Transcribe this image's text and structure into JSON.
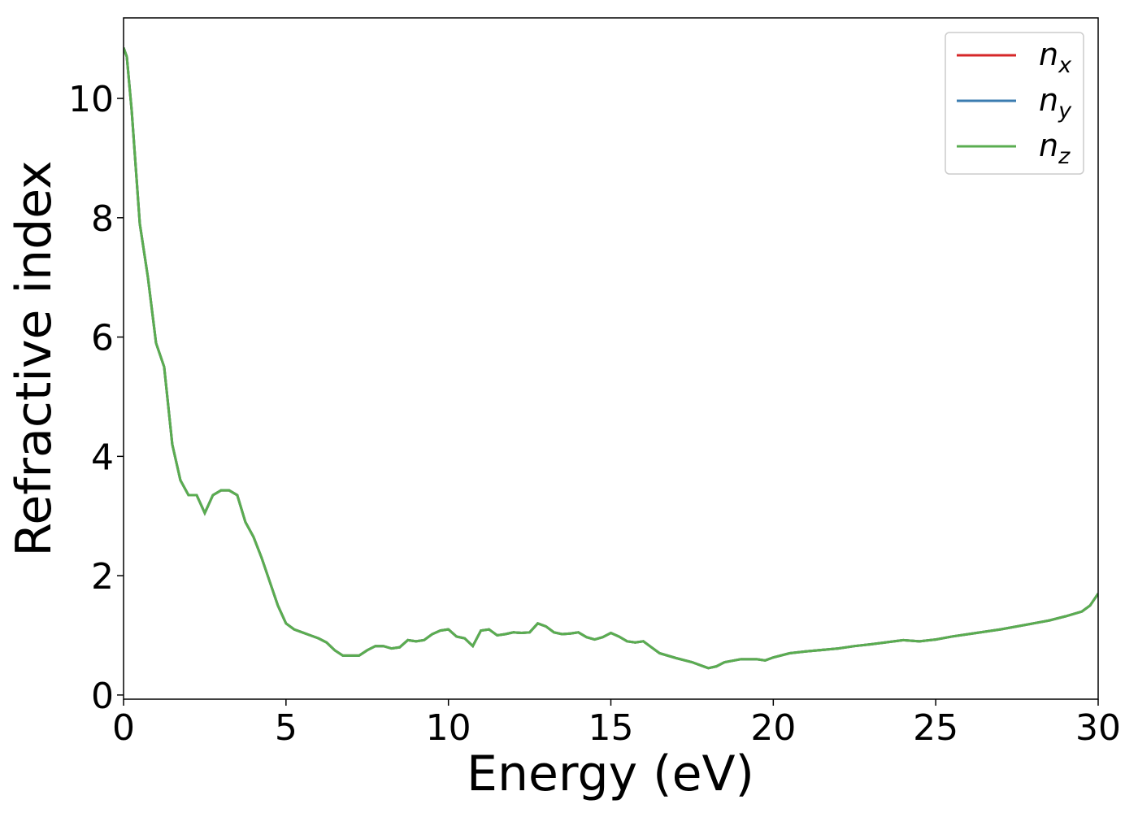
{
  "chart_data": {
    "type": "line",
    "xlabel": "Energy (eV)",
    "ylabel": "Refractive index",
    "x": [
      0,
      0.1,
      0.25,
      0.5,
      0.75,
      1.0,
      1.25,
      1.5,
      1.75,
      2.0,
      2.25,
      2.5,
      2.75,
      3.0,
      3.25,
      3.5,
      3.75,
      4.0,
      4.25,
      4.5,
      4.75,
      5.0,
      5.25,
      5.5,
      5.75,
      6.0,
      6.25,
      6.5,
      6.75,
      7.0,
      7.25,
      7.5,
      7.75,
      8.0,
      8.25,
      8.5,
      8.75,
      9.0,
      9.25,
      9.5,
      9.75,
      10.0,
      10.25,
      10.5,
      10.75,
      11.0,
      11.25,
      11.5,
      11.75,
      12.0,
      12.25,
      12.5,
      12.75,
      13.0,
      13.25,
      13.5,
      13.75,
      14.0,
      14.25,
      14.5,
      14.75,
      15.0,
      15.25,
      15.5,
      15.75,
      16.0,
      16.25,
      16.5,
      17.0,
      17.5,
      17.75,
      18.0,
      18.25,
      18.5,
      19.0,
      19.5,
      19.75,
      20.0,
      20.5,
      21.0,
      22.0,
      22.5,
      23.0,
      24.0,
      24.5,
      25.0,
      25.5,
      26.0,
      27.0,
      28.0,
      28.5,
      29.0,
      29.5,
      29.75,
      30.0
    ],
    "series": [
      {
        "name": "nx",
        "color": "#d62728",
        "values": [
          10.85,
          10.7,
          9.8,
          7.9,
          7.0,
          5.9,
          5.5,
          4.2,
          3.6,
          3.35,
          3.35,
          3.05,
          3.35,
          3.43,
          3.43,
          3.35,
          2.9,
          2.65,
          2.3,
          1.9,
          1.5,
          1.2,
          1.1,
          1.05,
          1.0,
          0.95,
          0.88,
          0.75,
          0.66,
          0.66,
          0.66,
          0.75,
          0.82,
          0.82,
          0.78,
          0.8,
          0.92,
          0.9,
          0.92,
          1.02,
          1.08,
          1.1,
          0.98,
          0.95,
          0.82,
          1.08,
          1.1,
          1.0,
          1.02,
          1.05,
          1.04,
          1.05,
          1.2,
          1.15,
          1.05,
          1.02,
          1.03,
          1.05,
          0.97,
          0.93,
          0.97,
          1.04,
          0.98,
          0.9,
          0.88,
          0.9,
          0.8,
          0.7,
          0.62,
          0.55,
          0.5,
          0.45,
          0.48,
          0.55,
          0.6,
          0.6,
          0.58,
          0.63,
          0.7,
          0.73,
          0.78,
          0.82,
          0.85,
          0.92,
          0.9,
          0.93,
          0.98,
          1.02,
          1.1,
          1.2,
          1.25,
          1.32,
          1.4,
          1.5,
          1.7
        ]
      },
      {
        "name": "ny",
        "color": "#3b7cb0",
        "values": [
          10.85,
          10.7,
          9.8,
          7.9,
          7.0,
          5.9,
          5.5,
          4.2,
          3.6,
          3.35,
          3.35,
          3.05,
          3.35,
          3.43,
          3.43,
          3.35,
          2.9,
          2.65,
          2.3,
          1.9,
          1.5,
          1.2,
          1.1,
          1.05,
          1.0,
          0.95,
          0.88,
          0.75,
          0.66,
          0.66,
          0.66,
          0.75,
          0.82,
          0.82,
          0.78,
          0.8,
          0.92,
          0.9,
          0.92,
          1.02,
          1.08,
          1.1,
          0.98,
          0.95,
          0.82,
          1.08,
          1.1,
          1.0,
          1.02,
          1.05,
          1.04,
          1.05,
          1.2,
          1.15,
          1.05,
          1.02,
          1.03,
          1.05,
          0.97,
          0.93,
          0.97,
          1.04,
          0.98,
          0.9,
          0.88,
          0.9,
          0.8,
          0.7,
          0.62,
          0.55,
          0.5,
          0.45,
          0.48,
          0.55,
          0.6,
          0.6,
          0.58,
          0.63,
          0.7,
          0.73,
          0.78,
          0.82,
          0.85,
          0.92,
          0.9,
          0.93,
          0.98,
          1.02,
          1.1,
          1.2,
          1.25,
          1.32,
          1.4,
          1.5,
          1.7
        ]
      },
      {
        "name": "nz",
        "color": "#5aad50",
        "values": [
          10.85,
          10.7,
          9.8,
          7.9,
          7.0,
          5.9,
          5.5,
          4.2,
          3.6,
          3.35,
          3.35,
          3.05,
          3.35,
          3.43,
          3.43,
          3.35,
          2.9,
          2.65,
          2.3,
          1.9,
          1.5,
          1.2,
          1.1,
          1.05,
          1.0,
          0.95,
          0.88,
          0.75,
          0.66,
          0.66,
          0.66,
          0.75,
          0.82,
          0.82,
          0.78,
          0.8,
          0.92,
          0.9,
          0.92,
          1.02,
          1.08,
          1.1,
          0.98,
          0.95,
          0.82,
          1.08,
          1.1,
          1.0,
          1.02,
          1.05,
          1.04,
          1.05,
          1.2,
          1.15,
          1.05,
          1.02,
          1.03,
          1.05,
          0.97,
          0.93,
          0.97,
          1.04,
          0.98,
          0.9,
          0.88,
          0.9,
          0.8,
          0.7,
          0.62,
          0.55,
          0.5,
          0.45,
          0.48,
          0.55,
          0.6,
          0.6,
          0.58,
          0.63,
          0.7,
          0.73,
          0.78,
          0.82,
          0.85,
          0.92,
          0.9,
          0.93,
          0.98,
          1.02,
          1.1,
          1.2,
          1.25,
          1.32,
          1.4,
          1.5,
          1.7
        ]
      }
    ],
    "xlim": [
      0,
      30
    ],
    "xticks": [
      0,
      5,
      10,
      15,
      20,
      25,
      30
    ],
    "ylim": [
      -0.07,
      11.35
    ],
    "yticks": [
      0,
      2,
      4,
      6,
      8,
      10
    ],
    "grid": false,
    "legend": "upper right"
  }
}
